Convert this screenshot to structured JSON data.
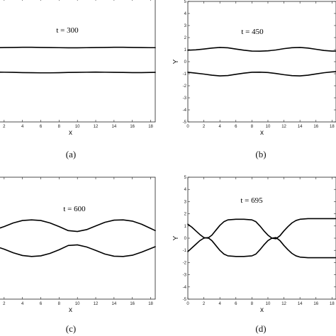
{
  "figure": {
    "captions": [
      "(a)",
      "(b)",
      "(c)",
      "(d)"
    ]
  },
  "chart_data": [
    {
      "type": "line",
      "title": "t = 300",
      "xlabel": "x",
      "ylabel": "",
      "xlim": [
        0,
        18.5
      ],
      "ylim": [
        -5,
        5
      ],
      "xticks": [
        2,
        4,
        6,
        8,
        10,
        12,
        14,
        16,
        18
      ],
      "yticks": [],
      "series": [
        {
          "x": [
            0,
            1,
            2,
            3,
            4,
            5,
            6,
            7,
            8,
            9,
            10,
            11,
            12,
            13,
            14,
            15,
            16,
            17,
            18,
            18.5
          ],
          "values": [
            1.02,
            1.02,
            1.03,
            1.04,
            1.05,
            1.05,
            1.04,
            1.03,
            1.02,
            1.01,
            1.01,
            1.02,
            1.03,
            1.04,
            1.05,
            1.05,
            1.04,
            1.03,
            1.02,
            1.02
          ]
        },
        {
          "x": [
            0,
            1,
            2,
            3,
            4,
            5,
            6,
            7,
            8,
            9,
            10,
            11,
            12,
            13,
            14,
            15,
            16,
            17,
            18,
            18.5
          ],
          "values": [
            -0.95,
            -0.96,
            -0.97,
            -0.98,
            -1.0,
            -1.01,
            -1.02,
            -1.02,
            -1.01,
            -0.99,
            -0.98,
            -0.97,
            -0.96,
            -0.97,
            -0.98,
            -0.99,
            -1.0,
            -1.0,
            -0.99,
            -0.98
          ]
        }
      ]
    },
    {
      "type": "line",
      "title": "t = 450",
      "xlabel": "x",
      "ylabel": "Y",
      "xlim": [
        0,
        18.5
      ],
      "ylim": [
        -5,
        5
      ],
      "xticks": [
        0,
        2,
        4,
        6,
        8,
        10,
        12,
        14,
        16,
        18
      ],
      "yticks": [
        -5,
        -4,
        -3,
        -2,
        -1,
        0,
        1,
        2,
        3,
        4,
        5
      ],
      "series": [
        {
          "x": [
            0,
            1,
            2,
            3,
            4,
            5,
            6,
            7,
            8,
            9,
            10,
            11,
            12,
            13,
            14,
            15,
            16,
            17,
            18,
            18.5
          ],
          "values": [
            0.95,
            0.98,
            1.05,
            1.13,
            1.18,
            1.15,
            1.05,
            0.95,
            0.88,
            0.87,
            0.9,
            0.97,
            1.08,
            1.16,
            1.18,
            1.13,
            1.03,
            0.93,
            0.88,
            0.88
          ]
        },
        {
          "x": [
            0,
            1,
            2,
            3,
            4,
            5,
            6,
            7,
            8,
            9,
            10,
            11,
            12,
            13,
            14,
            15,
            16,
            17,
            18,
            18.5
          ],
          "values": [
            -0.88,
            -0.95,
            -1.03,
            -1.12,
            -1.18,
            -1.15,
            -1.05,
            -0.95,
            -0.88,
            -0.87,
            -0.9,
            -0.98,
            -1.08,
            -1.16,
            -1.18,
            -1.12,
            -1.02,
            -0.92,
            -0.85,
            -0.83
          ]
        }
      ]
    },
    {
      "type": "line",
      "title": "t = 600",
      "xlabel": "x",
      "ylabel": "",
      "xlim": [
        0,
        18.5
      ],
      "ylim": [
        -5,
        5
      ],
      "xticks": [
        2,
        4,
        6,
        8,
        10,
        12,
        14,
        16,
        18
      ],
      "yticks": [],
      "series": [
        {
          "x": [
            0,
            1,
            2,
            3,
            4,
            5,
            6,
            7,
            8,
            9,
            10,
            11,
            12,
            13,
            14,
            15,
            16,
            17,
            18,
            18.5
          ],
          "values": [
            0.6,
            0.7,
            0.95,
            1.25,
            1.45,
            1.5,
            1.45,
            1.25,
            0.95,
            0.62,
            0.55,
            0.7,
            1.0,
            1.3,
            1.48,
            1.5,
            1.4,
            1.15,
            0.8,
            0.62
          ]
        },
        {
          "x": [
            0,
            1,
            2,
            3,
            4,
            5,
            6,
            7,
            8,
            9,
            10,
            11,
            12,
            13,
            14,
            15,
            16,
            17,
            18,
            18.5
          ],
          "values": [
            -0.55,
            -0.65,
            -0.9,
            -1.2,
            -1.42,
            -1.5,
            -1.45,
            -1.25,
            -0.95,
            -0.6,
            -0.55,
            -0.72,
            -1.0,
            -1.3,
            -1.48,
            -1.5,
            -1.4,
            -1.15,
            -0.85,
            -0.7
          ]
        }
      ]
    },
    {
      "type": "line",
      "title": "t = 695",
      "xlabel": "x",
      "ylabel": "Y",
      "xlim": [
        0,
        18.5
      ],
      "ylim": [
        -5,
        5
      ],
      "xticks": [
        0,
        2,
        4,
        6,
        8,
        10,
        12,
        14,
        16,
        18
      ],
      "yticks": [
        -5,
        -4,
        -3,
        -2,
        -1,
        0,
        1,
        2,
        3,
        4,
        5
      ],
      "series": [
        {
          "x": [
            0,
            0.5,
            1,
            1.5,
            2,
            2.5,
            3,
            3.5,
            4,
            4.5,
            5,
            6,
            7,
            8,
            8.5,
            9,
            9.5,
            10,
            10.5,
            11,
            11.5,
            12,
            12.5,
            13,
            13.5,
            14,
            15,
            16,
            17,
            18,
            18.5
          ],
          "values": [
            1.15,
            0.9,
            0.6,
            0.3,
            0.05,
            0.0,
            0.25,
            0.65,
            1.05,
            1.35,
            1.5,
            1.55,
            1.55,
            1.5,
            1.35,
            1.0,
            0.6,
            0.25,
            0.0,
            -0.05,
            0.2,
            0.6,
            0.95,
            1.25,
            1.45,
            1.55,
            1.6,
            1.6,
            1.6,
            1.6,
            1.6
          ]
        },
        {
          "x": [
            0,
            0.5,
            1,
            1.5,
            2,
            2.5,
            3,
            3.5,
            4,
            4.5,
            5,
            6,
            7,
            8,
            8.5,
            9,
            9.5,
            10,
            10.5,
            11,
            11.5,
            12,
            12.5,
            13,
            13.5,
            14,
            15,
            16,
            17,
            18,
            18.5
          ],
          "values": [
            -1.1,
            -0.8,
            -0.5,
            -0.2,
            0.0,
            0.05,
            -0.2,
            -0.6,
            -1.0,
            -1.3,
            -1.45,
            -1.5,
            -1.5,
            -1.45,
            -1.3,
            -0.95,
            -0.55,
            -0.2,
            0.0,
            0.05,
            -0.2,
            -0.6,
            -0.95,
            -1.25,
            -1.45,
            -1.55,
            -1.6,
            -1.6,
            -1.6,
            -1.6,
            -1.6
          ]
        }
      ]
    }
  ]
}
